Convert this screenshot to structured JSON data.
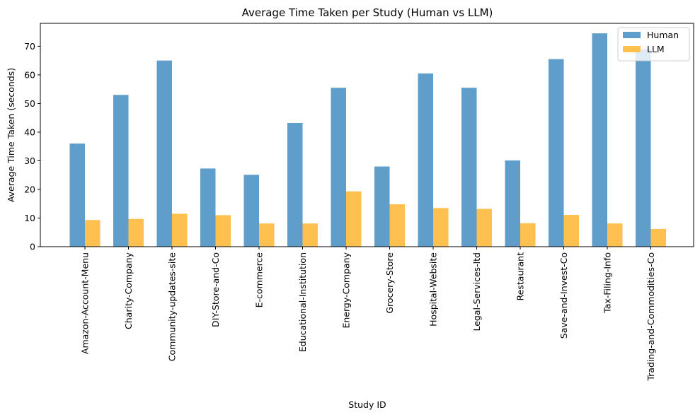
{
  "chart_data": {
    "type": "bar",
    "title": "Average Time Taken per Study (Human vs LLM)",
    "xlabel": "Study ID",
    "ylabel": "Average Time Taken (seconds)",
    "ylim": [
      0,
      78
    ],
    "yticks": [
      0,
      10,
      20,
      30,
      40,
      50,
      60,
      70
    ],
    "grid": false,
    "legend_position": "top-right",
    "categories": [
      "Amazon-Account-Menu",
      "Charity-Company",
      "Community-updates-site",
      "DIY-Store-and-Co",
      "E-commerce",
      "Educational-Institution",
      "Energy-Company",
      "Grocery-Store",
      "Hospital-Website",
      "Legal-Services-ltd",
      "Restaurant",
      "Save-and-Invest-Co",
      "Tax-Filing-Info",
      "Trading-and-Commodities-Co"
    ],
    "series": [
      {
        "name": "Human",
        "color": "#5f9ecb",
        "values": [
          36,
          53,
          65,
          27.3,
          25.1,
          43.2,
          55.5,
          28,
          60.5,
          55.5,
          30.1,
          65.5,
          74.5,
          69
        ]
      },
      {
        "name": "LLM",
        "color": "#fec04f",
        "values": [
          9.3,
          9.7,
          11.5,
          11,
          8.1,
          8.1,
          19.3,
          14.8,
          13.5,
          13.2,
          8.2,
          11.1,
          8.1,
          6.2
        ]
      }
    ]
  }
}
